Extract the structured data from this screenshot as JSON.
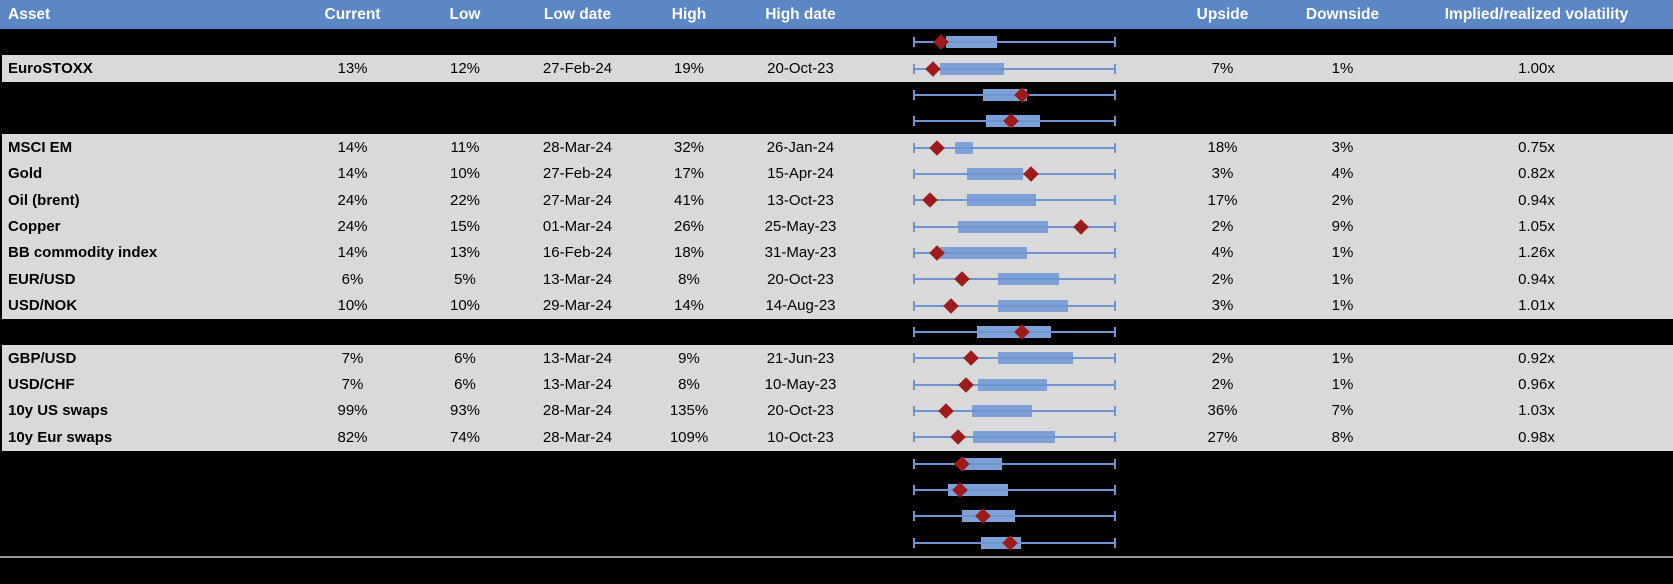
{
  "colors": {
    "header_bg": "#5b87c5",
    "header_text": "#ffffff",
    "row_bg": "#d9d9d9",
    "hidden_row_bg": "#000000",
    "whisker_blue": "#6e95d0",
    "box_blue": "#7da1d6",
    "marker_red": "#9e1b1b",
    "footer_line": "#9a9a9a"
  },
  "table": {
    "columns": [
      {
        "key": "asset",
        "label": "Asset",
        "align": "left"
      },
      {
        "key": "current",
        "label": "Current",
        "align": "center"
      },
      {
        "key": "low",
        "label": "Low",
        "align": "center"
      },
      {
        "key": "low_date",
        "label": "Low date",
        "align": "center"
      },
      {
        "key": "high",
        "label": "High",
        "align": "center"
      },
      {
        "key": "high_date",
        "label": "High date",
        "align": "center"
      },
      {
        "key": "chart",
        "label": "",
        "align": "center"
      },
      {
        "key": "upside",
        "label": "Upside",
        "align": "center"
      },
      {
        "key": "downside",
        "label": "Downside",
        "align": "center"
      },
      {
        "key": "iv",
        "label": "Implied/realized volatility",
        "align": "center"
      }
    ],
    "rows": [
      {
        "type": "hidden",
        "plot": {
          "box": [
            0.16,
            0.412
          ],
          "marker": 0.136
        }
      },
      {
        "type": "data",
        "asset": "EuroSTOXX",
        "current": "13%",
        "low": "12%",
        "low_date": "27-Feb-24",
        "high": "19%",
        "high_date": "20-Oct-23",
        "upside": "7%",
        "downside": "1%",
        "iv": "1.00x",
        "plot": {
          "box": [
            0.133,
            0.448
          ],
          "marker": 0.097
        }
      },
      {
        "type": "hidden",
        "plot": {
          "box": [
            0.346,
            0.56
          ],
          "marker": 0.538
        }
      },
      {
        "type": "hidden",
        "plot": {
          "box": [
            0.358,
            0.626
          ],
          "marker": 0.483
        }
      },
      {
        "type": "data",
        "asset": "MSCI EM",
        "current": "14%",
        "low": "11%",
        "low_date": "28-Mar-24",
        "high": "32%",
        "high_date": "26-Jan-24",
        "upside": "18%",
        "downside": "3%",
        "iv": "0.75x",
        "plot": {
          "box": [
            0.207,
            0.294
          ],
          "marker": 0.12
        }
      },
      {
        "type": "data",
        "asset": "Gold",
        "current": "14%",
        "low": "10%",
        "low_date": "27-Feb-24",
        "high": "17%",
        "high_date": "15-Apr-24",
        "upside": "3%",
        "downside": "4%",
        "iv": "0.82x",
        "plot": {
          "box": [
            0.265,
            0.541
          ],
          "marker": 0.58
        }
      },
      {
        "type": "data",
        "asset": "Oil (brent)",
        "current": "24%",
        "low": "22%",
        "low_date": "27-Mar-24",
        "high": "41%",
        "high_date": "13-Oct-23",
        "upside": "17%",
        "downside": "2%",
        "iv": "0.94x",
        "plot": {
          "box": [
            0.268,
            0.608
          ],
          "marker": 0.084
        }
      },
      {
        "type": "data",
        "asset": "Copper",
        "current": "24%",
        "low": "15%",
        "low_date": "01-Mar-24",
        "high": "26%",
        "high_date": "25-May-23",
        "upside": "2%",
        "downside": "9%",
        "iv": "1.05x",
        "plot": {
          "box": [
            0.222,
            0.664
          ],
          "marker": 0.829
        }
      },
      {
        "type": "data",
        "asset": "BB commodity index",
        "current": "14%",
        "low": "13%",
        "low_date": "16-Feb-24",
        "high": "18%",
        "high_date": "31-May-23",
        "upside": "4%",
        "downside": "1%",
        "iv": "1.26x",
        "plot": {
          "box": [
            0.133,
            0.563
          ],
          "marker": 0.117
        }
      },
      {
        "type": "data",
        "asset": "EUR/USD",
        "current": "6%",
        "low": "5%",
        "low_date": "13-Mar-24",
        "high": "8%",
        "high_date": "20-Oct-23",
        "upside": "2%",
        "downside": "1%",
        "iv": "0.94x",
        "plot": {
          "box": [
            0.417,
            0.718
          ],
          "marker": 0.241
        }
      },
      {
        "type": "data",
        "asset": "USD/NOK",
        "current": "10%",
        "low": "10%",
        "low_date": "29-Mar-24",
        "high": "14%",
        "high_date": "14-Aug-23",
        "upside": "3%",
        "downside": "1%",
        "iv": "1.01x",
        "plot": {
          "box": [
            0.417,
            0.762
          ],
          "marker": 0.187
        }
      },
      {
        "type": "hidden",
        "plot": {
          "box": [
            0.314,
            0.68
          ],
          "marker": 0.536
        }
      },
      {
        "type": "data",
        "asset": "GBP/USD",
        "current": "7%",
        "low": "6%",
        "low_date": "13-Mar-24",
        "high": "9%",
        "high_date": "21-Jun-23",
        "upside": "2%",
        "downside": "1%",
        "iv": "0.92x",
        "plot": {
          "box": [
            0.417,
            0.79
          ],
          "marker": 0.286
        }
      },
      {
        "type": "data",
        "asset": "USD/CHF",
        "current": "7%",
        "low": "6%",
        "low_date": "13-Mar-24",
        "high": "8%",
        "high_date": "10-May-23",
        "upside": "2%",
        "downside": "1%",
        "iv": "0.96x",
        "plot": {
          "box": [
            0.319,
            0.659
          ],
          "marker": 0.26
        }
      },
      {
        "type": "data",
        "asset": "10y US swaps",
        "current": "99%",
        "low": "93%",
        "low_date": "28-Mar-24",
        "high": "135%",
        "high_date": "20-Oct-23",
        "upside": "36%",
        "downside": "7%",
        "iv": "1.03x",
        "plot": {
          "box": [
            0.289,
            0.588
          ],
          "marker": 0.161
        }
      },
      {
        "type": "data",
        "asset": "10y Eur swaps",
        "current": "82%",
        "low": "74%",
        "low_date": "28-Mar-24",
        "high": "109%",
        "high_date": "10-Oct-23",
        "upside": "27%",
        "downside": "8%",
        "iv": "0.98x",
        "plot": {
          "box": [
            0.294,
            0.7
          ],
          "marker": 0.223
        }
      },
      {
        "type": "hidden",
        "plot": {
          "box": [
            0.248,
            0.437
          ],
          "marker": 0.243
        }
      },
      {
        "type": "hidden",
        "plot": {
          "box": [
            0.174,
            0.467
          ],
          "marker": 0.232
        }
      },
      {
        "type": "hidden",
        "plot": {
          "box": [
            0.24,
            0.503
          ],
          "marker": 0.346
        }
      },
      {
        "type": "hidden",
        "plot": {
          "box": [
            0.333,
            0.532
          ],
          "marker": 0.48
        }
      }
    ]
  },
  "chart_data": {
    "type": "box-whisker-rows",
    "note": "Each row shows a horizontal min-max whisker (full span), an implied-volatility range box and a dark-red diamond marking the current value; positions are fractions 0-1 of the whisker span.",
    "whisker_span": [
      0,
      1
    ]
  }
}
